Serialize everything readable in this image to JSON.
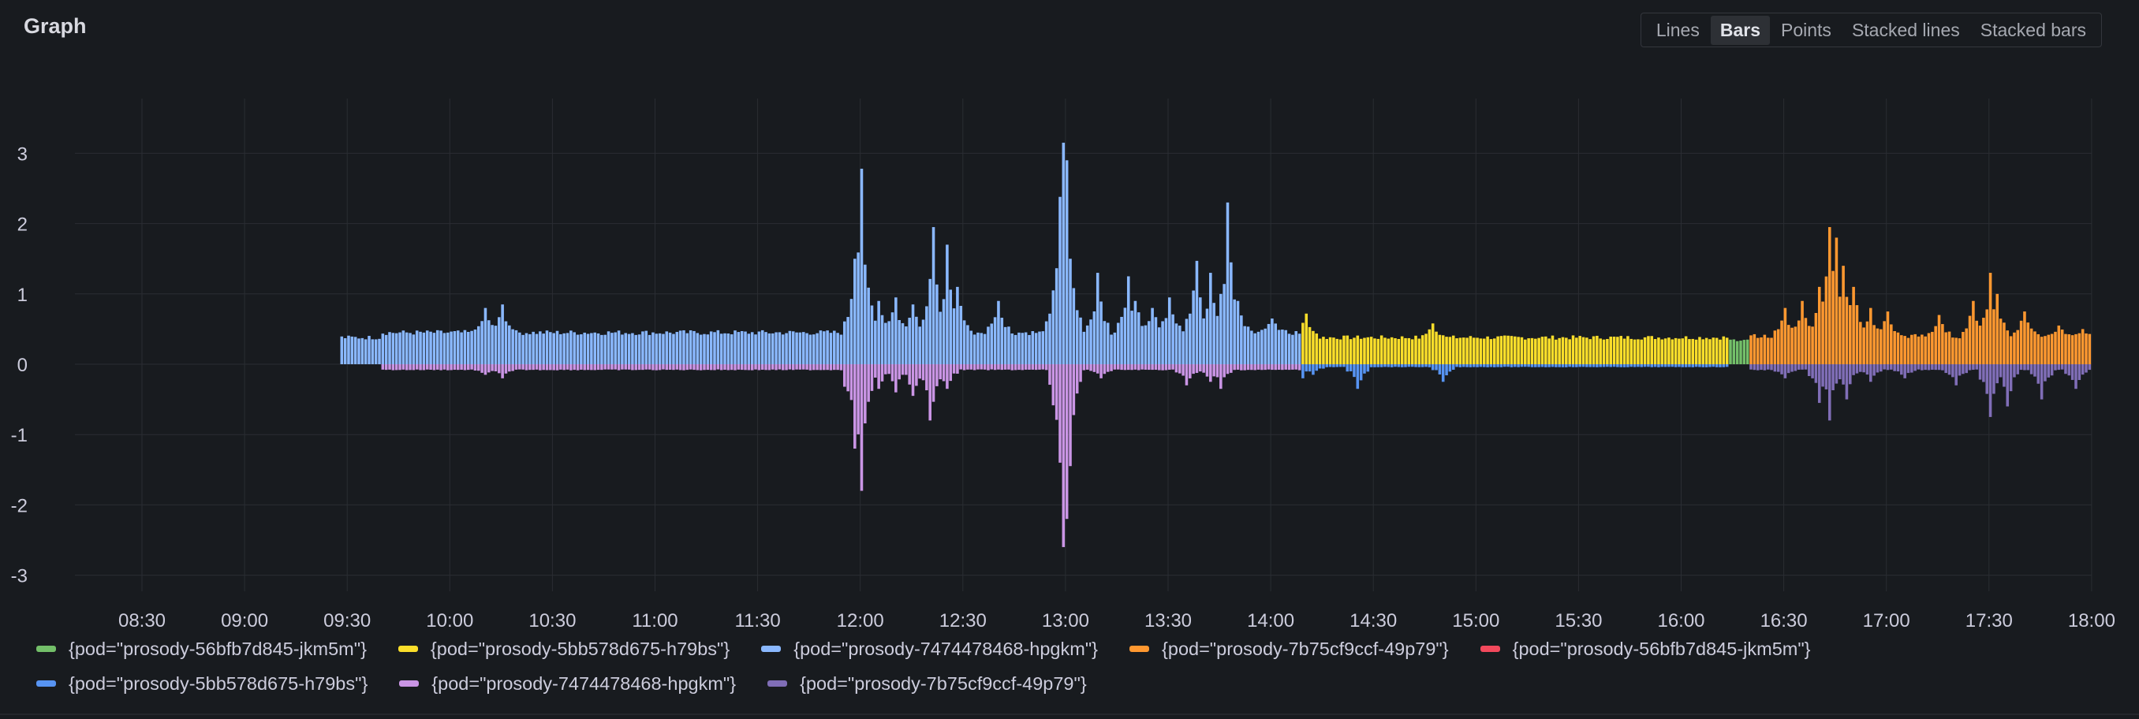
{
  "panel": {
    "title": "Graph",
    "modes": [
      "Lines",
      "Bars",
      "Points",
      "Stacked lines",
      "Stacked bars"
    ],
    "active_mode": "Bars"
  },
  "chart_data": {
    "type": "bar",
    "title": "",
    "xlabel": "",
    "ylabel": "",
    "ylim": [
      -3.5,
      3.8
    ],
    "xlim": [
      "08:15",
      "18:00"
    ],
    "yticks": [
      3,
      2,
      1,
      0,
      -1,
      -2,
      -3
    ],
    "xticks": [
      "08:30",
      "09:00",
      "09:30",
      "10:00",
      "10:30",
      "11:00",
      "11:30",
      "12:00",
      "12:30",
      "13:00",
      "13:30",
      "14:00",
      "14:30",
      "15:00",
      "15:30",
      "16:00",
      "16:30",
      "17:00",
      "17:30",
      "18:00"
    ],
    "grid": true,
    "legend_position": "bottom",
    "series": [
      {
        "name": "{pod=\"prosody-56bfb7d845-jkm5m\"}",
        "color": "#73bf69",
        "direction": "up",
        "segments": [
          {
            "start": "16:14",
            "end": "16:20",
            "base": 0.35
          }
        ]
      },
      {
        "name": "{pod=\"prosody-5bb578d675-h79bs\"}",
        "color": "#fade2a",
        "direction": "up",
        "segments": [
          {
            "start": "14:09",
            "end": "16:14",
            "base": 0.38
          }
        ],
        "peaks": [
          {
            "t": "14:10",
            "v": 0.72
          },
          {
            "t": "14:47",
            "v": 0.58
          }
        ]
      },
      {
        "name": "{pod=\"prosody-7474478468-hpgkm\"}",
        "color": "#8ab8ff",
        "direction": "up",
        "segments": [
          {
            "start": "09:28",
            "end": "09:40",
            "base": 0.38
          },
          {
            "start": "09:40",
            "end": "11:45",
            "base": 0.45
          },
          {
            "start": "11:45",
            "end": "14:09",
            "base": 0.45
          }
        ],
        "peaks": [
          {
            "t": "10:10",
            "v": 0.8
          },
          {
            "t": "10:15",
            "v": 0.85
          },
          {
            "t": "11:58",
            "v": 1.5
          },
          {
            "t": "12:00",
            "v": 2.78
          },
          {
            "t": "12:01",
            "v": 1.3
          },
          {
            "t": "12:05",
            "v": 0.9
          },
          {
            "t": "12:10",
            "v": 0.95
          },
          {
            "t": "12:15",
            "v": 0.85
          },
          {
            "t": "12:21",
            "v": 1.95
          },
          {
            "t": "12:25",
            "v": 1.7
          },
          {
            "t": "12:28",
            "v": 1.1
          },
          {
            "t": "12:40",
            "v": 0.9
          },
          {
            "t": "12:57",
            "v": 1.2
          },
          {
            "t": "12:58",
            "v": 2.38
          },
          {
            "t": "12:59",
            "v": 3.15
          },
          {
            "t": "13:00",
            "v": 2.9
          },
          {
            "t": "13:01",
            "v": 1.5
          },
          {
            "t": "13:09",
            "v": 1.3
          },
          {
            "t": "13:18",
            "v": 1.25
          },
          {
            "t": "13:20",
            "v": 0.9
          },
          {
            "t": "13:25",
            "v": 0.8
          },
          {
            "t": "13:30",
            "v": 0.95
          },
          {
            "t": "13:38",
            "v": 1.47
          },
          {
            "t": "13:42",
            "v": 1.3
          },
          {
            "t": "13:45",
            "v": 1.0
          },
          {
            "t": "13:47",
            "v": 2.3
          },
          {
            "t": "13:50",
            "v": 0.9
          },
          {
            "t": "14:00",
            "v": 0.65
          }
        ]
      },
      {
        "name": "{pod=\"prosody-7b75cf9ccf-49p79\"}",
        "color": "#ff9830",
        "direction": "up",
        "segments": [
          {
            "start": "16:20",
            "end": "18:00",
            "base": 0.4
          }
        ],
        "peaks": [
          {
            "t": "16:30",
            "v": 0.8
          },
          {
            "t": "16:35",
            "v": 0.9
          },
          {
            "t": "16:40",
            "v": 1.1
          },
          {
            "t": "16:43",
            "v": 1.95
          },
          {
            "t": "16:45",
            "v": 1.8
          },
          {
            "t": "16:47",
            "v": 1.4
          },
          {
            "t": "16:50",
            "v": 1.1
          },
          {
            "t": "16:55",
            "v": 0.8
          },
          {
            "t": "17:00",
            "v": 0.75
          },
          {
            "t": "17:15",
            "v": 0.7
          },
          {
            "t": "17:25",
            "v": 0.9
          },
          {
            "t": "17:30",
            "v": 1.3
          },
          {
            "t": "17:32",
            "v": 1.0
          },
          {
            "t": "17:40",
            "v": 0.75
          },
          {
            "t": "17:50",
            "v": 0.55
          },
          {
            "t": "17:57",
            "v": 0.5
          }
        ]
      },
      {
        "name": "{pod=\"prosody-56bfb7d845-jkm5m\"}",
        "color": "#f2495c",
        "direction": "down",
        "segments": []
      },
      {
        "name": "{pod=\"prosody-5bb578d675-h79bs\"}",
        "color": "#5794f2",
        "direction": "down",
        "segments": [
          {
            "start": "14:09",
            "end": "16:14",
            "base": 0.04
          }
        ],
        "peaks": [
          {
            "t": "14:09",
            "v": 0.2
          },
          {
            "t": "14:12",
            "v": 0.15
          },
          {
            "t": "14:25",
            "v": 0.35
          },
          {
            "t": "14:50",
            "v": 0.25
          }
        ]
      },
      {
        "name": "{pod=\"prosody-7474478468-hpgkm\"}",
        "color": "#ca95e5",
        "direction": "down",
        "segments": [
          {
            "start": "09:40",
            "end": "14:09",
            "base": 0.08
          }
        ],
        "peaks": [
          {
            "t": "10:10",
            "v": 0.15
          },
          {
            "t": "10:15",
            "v": 0.2
          },
          {
            "t": "11:58",
            "v": 1.2
          },
          {
            "t": "12:00",
            "v": 1.8
          },
          {
            "t": "12:05",
            "v": 0.35
          },
          {
            "t": "12:10",
            "v": 0.4
          },
          {
            "t": "12:15",
            "v": 0.45
          },
          {
            "t": "12:20",
            "v": 0.8
          },
          {
            "t": "12:25",
            "v": 0.35
          },
          {
            "t": "12:58",
            "v": 1.4
          },
          {
            "t": "12:59",
            "v": 2.6
          },
          {
            "t": "13:00",
            "v": 2.2
          },
          {
            "t": "13:01",
            "v": 1.1
          },
          {
            "t": "13:10",
            "v": 0.2
          },
          {
            "t": "13:35",
            "v": 0.3
          },
          {
            "t": "13:42",
            "v": 0.25
          },
          {
            "t": "13:45",
            "v": 0.35
          }
        ]
      },
      {
        "name": "{pod=\"prosody-7b75cf9ccf-49p79\"}",
        "color": "#806eb7",
        "direction": "down",
        "segments": [
          {
            "start": "16:20",
            "end": "18:00",
            "base": 0.08
          }
        ],
        "peaks": [
          {
            "t": "16:30",
            "v": 0.2
          },
          {
            "t": "16:40",
            "v": 0.55
          },
          {
            "t": "16:43",
            "v": 0.8
          },
          {
            "t": "16:48",
            "v": 0.5
          },
          {
            "t": "16:55",
            "v": 0.25
          },
          {
            "t": "17:05",
            "v": 0.2
          },
          {
            "t": "17:20",
            "v": 0.3
          },
          {
            "t": "17:30",
            "v": 0.75
          },
          {
            "t": "17:35",
            "v": 0.6
          },
          {
            "t": "17:45",
            "v": 0.5
          },
          {
            "t": "17:55",
            "v": 0.35
          }
        ]
      }
    ]
  }
}
